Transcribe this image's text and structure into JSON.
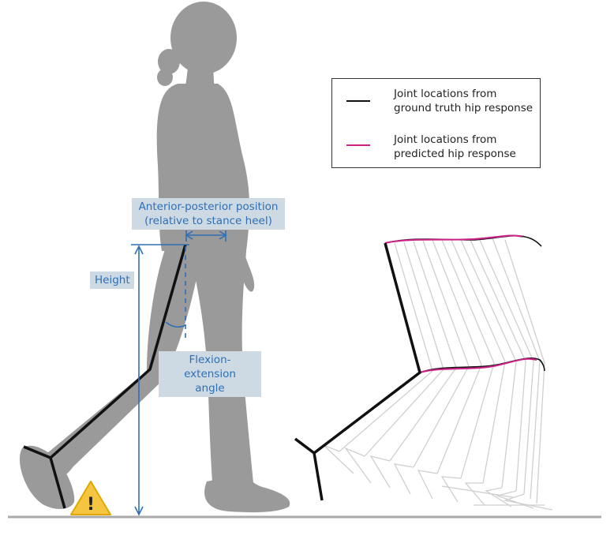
{
  "legend": {
    "ground_truth": {
      "line1": "Joint locations from",
      "line2": "ground truth hip response",
      "color": "#111111"
    },
    "predicted": {
      "line1": "Joint locations from",
      "line2": "predicted hip response",
      "color": "#cc2288"
    }
  },
  "labels": {
    "ap_position": {
      "line1": "Anterior-posterior position",
      "line2": "(relative to stance heel)"
    },
    "height": "Height",
    "flexion": {
      "line1": "Flexion-extension",
      "line2": "angle"
    }
  },
  "warning_symbol": "!",
  "colors": {
    "silhouette": "#9a9a9a",
    "annotation": "#2e6fb6",
    "tag_background": "#cdd9e3",
    "leg": "#111111",
    "predicted": "#cc2288",
    "sweep": "#cfcfcf",
    "floor": "#aaaaaa",
    "warning": "#f5c542"
  }
}
